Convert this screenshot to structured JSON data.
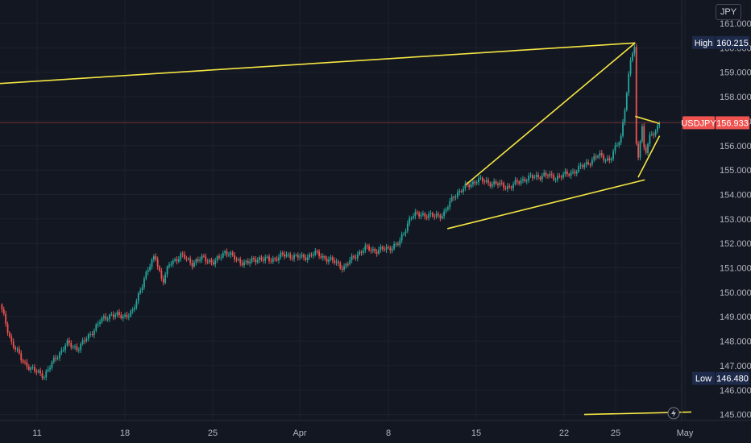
{
  "currency_unit": "JPY",
  "colors": {
    "background": "#131722",
    "up": "#26a69a",
    "down": "#ef5350",
    "trendline": "#f5e642",
    "high_low_tag": "#1e2a4a",
    "last_price_tag": "#ef5350"
  },
  "icons": {
    "zap": "lightning-bolt-icon"
  },
  "chart_data": {
    "type": "candlestick",
    "symbol": "USDJPY",
    "last_price": 156.933,
    "high": {
      "label": "High",
      "value": "160.215"
    },
    "low": {
      "label": "Low",
      "value": "146.480"
    },
    "last_tag": {
      "label": "USDJPY",
      "value": "156.933"
    },
    "y_ticks": [
      "161.000",
      "160.000",
      "159.000",
      "158.000",
      "157.000",
      "156.000",
      "155.000",
      "154.000",
      "153.000",
      "152.000",
      "151.000",
      "150.000",
      "149.000",
      "148.000",
      "147.000",
      "146.000",
      "145.000"
    ],
    "x_ticks": [
      "11",
      "18",
      "25",
      "Apr",
      "8",
      "15",
      "22",
      "25",
      "May"
    ],
    "ylim": [
      144.8,
      161.5
    ],
    "grid": true,
    "price_path": [
      [
        0,
        149.5
      ],
      [
        1.5,
        148.0
      ],
      [
        3,
        147.2
      ],
      [
        4.5,
        146.8
      ],
      [
        6,
        146.6
      ],
      [
        7.5,
        147.3
      ],
      [
        9,
        147.9
      ],
      [
        10.5,
        147.7
      ],
      [
        12,
        148.2
      ],
      [
        13.5,
        148.8
      ],
      [
        15,
        149.1
      ],
      [
        16.5,
        149.0
      ],
      [
        18,
        149.2
      ],
      [
        19.5,
        150.6
      ],
      [
        21,
        151.5
      ],
      [
        22,
        150.4
      ],
      [
        23,
        151.2
      ],
      [
        24.5,
        151.5
      ],
      [
        26,
        151.2
      ],
      [
        27.5,
        151.4
      ],
      [
        29,
        151.2
      ],
      [
        30.5,
        151.7
      ],
      [
        32,
        151.3
      ],
      [
        33.5,
        151.2
      ],
      [
        35,
        151.4
      ],
      [
        36.5,
        151.3
      ],
      [
        38,
        151.5
      ],
      [
        39.5,
        151.5
      ],
      [
        41,
        151.4
      ],
      [
        42.5,
        151.6
      ],
      [
        44,
        151.4
      ],
      [
        45.5,
        151.2
      ],
      [
        46.5,
        151.0
      ],
      [
        48,
        151.5
      ],
      [
        49.5,
        151.8
      ],
      [
        51,
        151.7
      ],
      [
        52.5,
        151.8
      ],
      [
        54,
        152.0
      ],
      [
        55.5,
        153.1
      ],
      [
        57,
        153.2
      ],
      [
        58.5,
        153.1
      ],
      [
        60,
        153.2
      ],
      [
        61.5,
        154.0
      ],
      [
        63,
        154.3
      ],
      [
        64.5,
        154.6
      ],
      [
        66,
        154.5
      ],
      [
        67.5,
        154.4
      ],
      [
        69,
        154.3
      ],
      [
        70.5,
        154.6
      ],
      [
        72,
        154.7
      ],
      [
        73.5,
        154.8
      ],
      [
        75,
        154.7
      ],
      [
        76.5,
        154.8
      ],
      [
        78,
        155.0
      ],
      [
        79.5,
        155.3
      ],
      [
        81,
        155.6
      ],
      [
        82.5,
        155.4
      ],
      [
        84,
        156.4
      ],
      [
        84.6,
        157.8
      ],
      [
        85.4,
        159.7
      ],
      [
        85.9,
        160.1
      ],
      [
        86.1,
        155.0
      ],
      [
        86.8,
        156.9
      ],
      [
        87.2,
        155.5
      ],
      [
        87.8,
        156.3
      ],
      [
        88.5,
        156.6
      ],
      [
        89.2,
        156.9
      ]
    ],
    "trendlines": [
      {
        "from": [
          -2,
          158.5
        ],
        "to": [
          85.9,
          160.2
        ]
      },
      {
        "from": [
          63,
          154.4
        ],
        "to": [
          85.9,
          160.2
        ]
      },
      {
        "from": [
          60.5,
          152.6
        ],
        "to": [
          87.2,
          154.6
        ]
      },
      {
        "from": [
          85.9,
          157.2
        ],
        "to": [
          89.2,
          156.9
        ]
      },
      {
        "from": [
          86.3,
          154.7
        ],
        "to": [
          89.2,
          156.4
        ]
      },
      {
        "from": [
          79,
          145.0
        ],
        "to": [
          93.5,
          145.1
        ]
      }
    ]
  }
}
